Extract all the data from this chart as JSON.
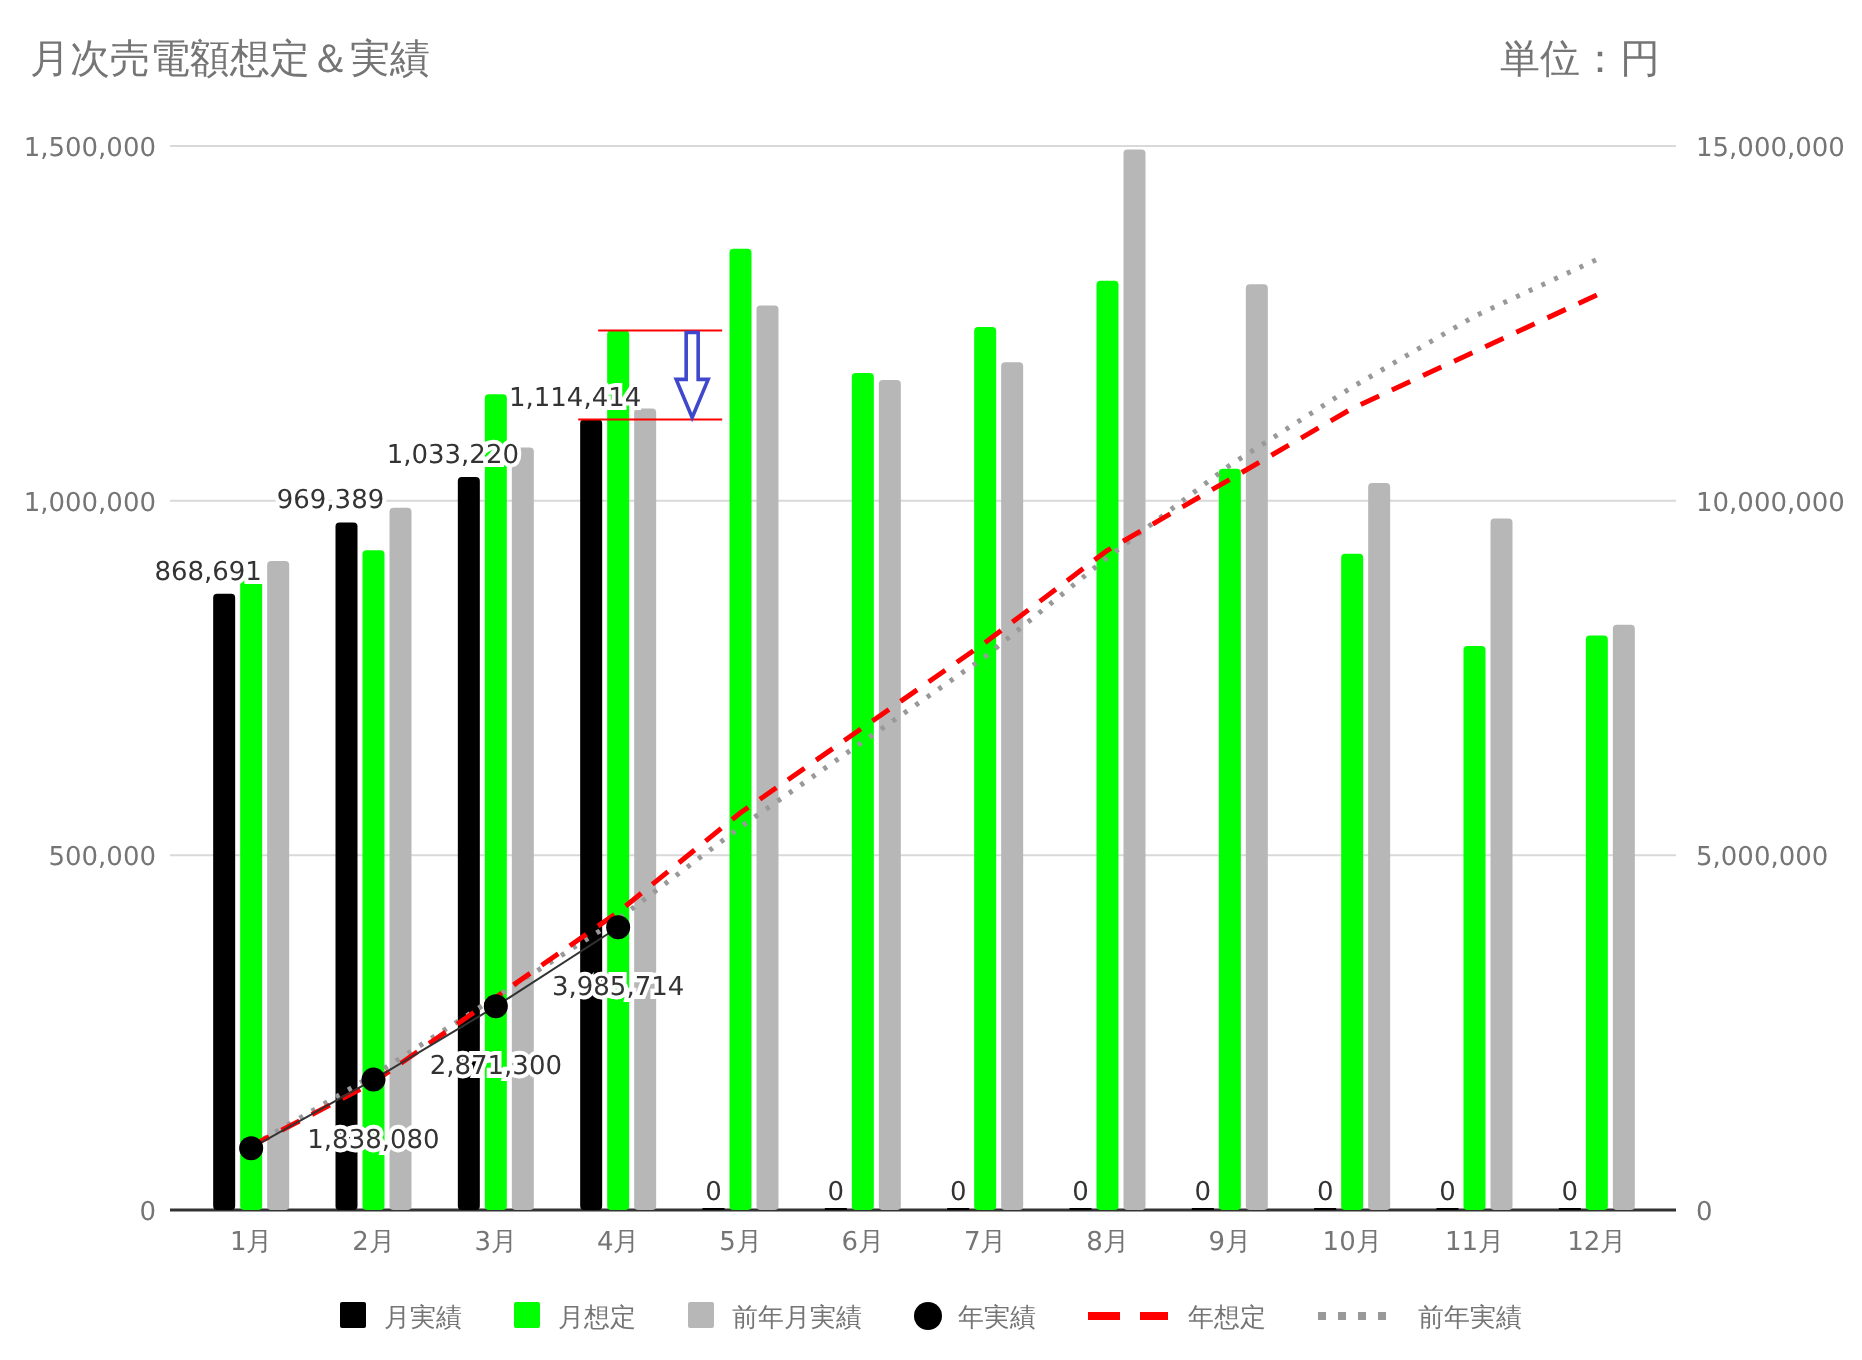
{
  "chart_data": {
    "type": "bar",
    "title": "月次売電額想定＆実績",
    "subtitle": "単位：円",
    "categories": [
      "1月",
      "2月",
      "3月",
      "4月",
      "5月",
      "6月",
      "7月",
      "8月",
      "9月",
      "10月",
      "11月",
      "12月"
    ],
    "series": [
      {
        "name": "月実績",
        "color": "#000000",
        "values": [
          868691,
          969389,
          1033220,
          1114414,
          0,
          0,
          0,
          0,
          0,
          0,
          0,
          0
        ],
        "value_labels": [
          "868,691",
          "969,389",
          "1,033,220",
          "1,114,414",
          "0",
          "0",
          "0",
          "0",
          "0",
          "0",
          "0",
          "0"
        ]
      },
      {
        "name": "月想定",
        "color": "#00ff00",
        "values": [
          890000,
          930000,
          1150000,
          1240000,
          1355000,
          1180000,
          1245000,
          1310000,
          1045000,
          925000,
          795000,
          810000
        ]
      },
      {
        "name": "前年月実績",
        "color": "#b7b7b7",
        "values": [
          915000,
          990000,
          1075000,
          1130000,
          1275000,
          1170000,
          1195000,
          1495000,
          1305000,
          1025000,
          975000,
          825000
        ]
      },
      {
        "name": "年実績",
        "type": "line",
        "axis": "y2",
        "color": "#000000",
        "marker": "circle",
        "line_style": "solid",
        "values": [
          870000,
          1838080,
          2871300,
          3985714,
          null,
          null,
          null,
          null,
          null,
          null,
          null,
          null
        ],
        "value_labels": [
          null,
          "1,838,080",
          "2,871,300",
          "3,985,714",
          null,
          null,
          null,
          null,
          null,
          null,
          null,
          null
        ]
      },
      {
        "name": "年想定",
        "type": "line",
        "axis": "y2",
        "color": "#ff0000",
        "marker": "none",
        "line_style": "dashed",
        "values": [
          900000,
          1800000,
          3000000,
          4200000,
          5600000,
          6800000,
          8000000,
          9300000,
          10300000,
          11300000,
          12100000,
          12900000
        ]
      },
      {
        "name": "前年実績",
        "type": "line",
        "axis": "y2",
        "color": "#999999",
        "marker": "none",
        "line_style": "dotted",
        "values": [
          900000,
          1900000,
          3000000,
          4100000,
          5400000,
          6600000,
          7800000,
          9200000,
          10500000,
          11600000,
          12600000,
          13400000
        ]
      }
    ],
    "ylim": [
      0,
      1500000
    ],
    "yticks": [
      {
        "value": 0,
        "label": "0"
      },
      {
        "value": 500000,
        "label": "500,000"
      },
      {
        "value": 1000000,
        "label": "1,000,000"
      },
      {
        "value": 1500000,
        "label": "1,500,000"
      }
    ],
    "y2lim": [
      0,
      15000000
    ],
    "y2ticks": [
      {
        "value": 0,
        "label": "0"
      },
      {
        "value": 5000000,
        "label": "5,000,000"
      },
      {
        "value": 10000000,
        "label": "10,000,000"
      },
      {
        "value": 15000000,
        "label": "15,000,000"
      }
    ],
    "grid": "y",
    "legend": "bottom"
  }
}
